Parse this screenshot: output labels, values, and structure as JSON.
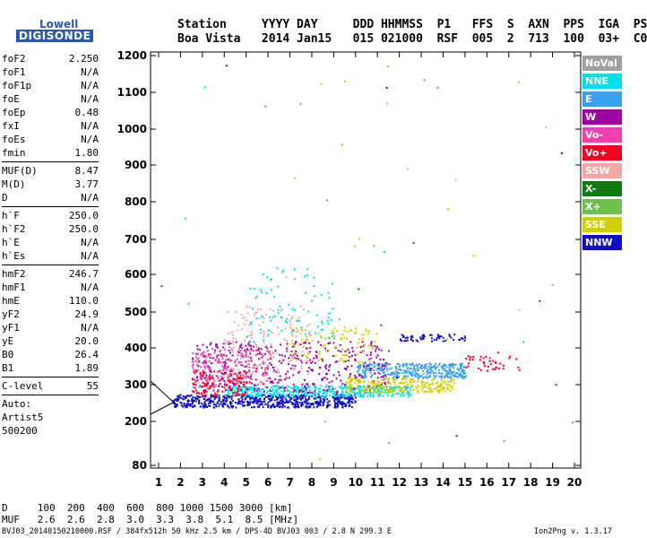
{
  "logo": {
    "line1": "Lowell",
    "line2": "DIGISONDE"
  },
  "header": {
    "line1": "Station     YYYY DAY     DDD HHMMSS  P1   FFS  S  AXN  PPS  IGA  PS",
    "line2": "Boa Vista   2014 Jan15   015 021000  RSF  005  2  713  100  03+  C0"
  },
  "parameters": [
    {
      "name": "foF2",
      "value": "2.250"
    },
    {
      "name": "foF1",
      "value": "N/A"
    },
    {
      "name": "foF1p",
      "value": "N/A"
    },
    {
      "name": "foE",
      "value": "N/A"
    },
    {
      "name": "foEp",
      "value": "0.48"
    },
    {
      "name": "fxI",
      "value": "N/A"
    },
    {
      "name": "foEs",
      "value": "N/A"
    },
    {
      "name": "fmin",
      "value": "1.80"
    },
    {
      "sep": true
    },
    {
      "name": "MUF(D)",
      "value": "8.47"
    },
    {
      "name": "M(D)",
      "value": "3.77"
    },
    {
      "name": "D",
      "value": "N/A"
    },
    {
      "sep": true
    },
    {
      "name": "h`F",
      "value": "250.0"
    },
    {
      "name": "h`F2",
      "value": "250.0"
    },
    {
      "name": "h`E",
      "value": "N/A"
    },
    {
      "name": "h`Es",
      "value": "N/A"
    },
    {
      "sep": true
    },
    {
      "name": "hmF2",
      "value": "246.7"
    },
    {
      "name": "hmF1",
      "value": "N/A"
    },
    {
      "name": "hmE",
      "value": "110.0"
    },
    {
      "name": "yF2",
      "value": "24.9"
    },
    {
      "name": "yF1",
      "value": "N/A"
    },
    {
      "name": "yE",
      "value": "20.0"
    },
    {
      "name": "B0",
      "value": "26.4"
    },
    {
      "name": "B1",
      "value": "1.89"
    },
    {
      "sep": true
    },
    {
      "name": "C-level",
      "value": "55"
    },
    {
      "sep": true
    },
    {
      "name": "Auto:",
      "value": ""
    },
    {
      "name": "Artist5",
      "value": ""
    },
    {
      "name": "500200",
      "value": ""
    }
  ],
  "legend": [
    {
      "label": "NoVal",
      "color": "#a0a0a0"
    },
    {
      "label": "NNE",
      "color": "#00e0e8"
    },
    {
      "label": "E",
      "color": "#3aa0f0"
    },
    {
      "label": "W",
      "color": "#a000a0"
    },
    {
      "label": "Vo-",
      "color": "#f040b0"
    },
    {
      "label": "Vo+",
      "color": "#f00020"
    },
    {
      "label": "SSW",
      "color": "#f0a8a0"
    },
    {
      "label": "X-",
      "color": "#107a10"
    },
    {
      "label": "X+",
      "color": "#70c050"
    },
    {
      "label": "SSE",
      "color": "#d0d000"
    },
    {
      "label": "NNW",
      "color": "#1010c0"
    }
  ],
  "bottom_table": {
    "row1": "D     100  200  400  600  800 1000 1500 3000 [km]",
    "row2": "MUF   2.6  2.6  2.8  3.0  3.3  3.8  5.1  8.5 [MHz]"
  },
  "footer": "BVJ03_20140150210000.RSF / 384fx512h 50 kHz 2.5 km / DPS-4D BVJ03 003 / 2.8 N 299.3 E",
  "version": "Ion2Png v. 1.3.17",
  "chart_data": {
    "type": "scatter",
    "x_ticks": [
      "1",
      "2",
      "3",
      "4",
      "5",
      "6",
      "7",
      "8",
      "9",
      "10",
      "11",
      "12",
      "13",
      "14",
      "15",
      "16",
      "17",
      "18",
      "19",
      "20"
    ],
    "y_ticks": [
      "80",
      "200",
      "300",
      "400",
      "500",
      "600",
      "700",
      "800",
      "900",
      "1000",
      "1100",
      "1200"
    ],
    "xlim": [
      1,
      20
    ],
    "ylim": [
      80,
      1200
    ],
    "clusters": [
      {
        "series": "NNW",
        "x": [
          1.6,
          10
        ],
        "y": [
          240,
          275
        ],
        "n": 600
      },
      {
        "series": "NNE",
        "x": [
          4,
          12.5
        ],
        "y": [
          270,
          300
        ],
        "n": 450
      },
      {
        "series": "E",
        "x": [
          10,
          15
        ],
        "y": [
          320,
          360
        ],
        "n": 350
      },
      {
        "series": "W",
        "x": [
          2.5,
          11.5
        ],
        "y": [
          280,
          420
        ],
        "n": 420
      },
      {
        "series": "Vo-",
        "x": [
          2.5,
          6
        ],
        "y": [
          300,
          400
        ],
        "n": 200
      },
      {
        "series": "Vo+",
        "x": [
          2.5,
          5
        ],
        "y": [
          270,
          340
        ],
        "n": 120
      },
      {
        "series": "SSW",
        "x": [
          4,
          8
        ],
        "y": [
          330,
          520
        ],
        "n": 160
      },
      {
        "series": "SSE",
        "x": [
          9.5,
          14.5
        ],
        "y": [
          280,
          320
        ],
        "n": 250
      },
      {
        "series": "SSE",
        "x": [
          7,
          11
        ],
        "y": [
          360,
          460
        ],
        "n": 90
      },
      {
        "series": "NNE",
        "x": [
          5,
          9
        ],
        "y": [
          420,
          620
        ],
        "n": 80
      },
      {
        "series": "Vo+",
        "x": [
          15,
          17.5
        ],
        "y": [
          340,
          380
        ],
        "n": 40
      },
      {
        "series": "NNW",
        "x": [
          12,
          15
        ],
        "y": [
          420,
          440
        ],
        "n": 60
      }
    ]
  }
}
